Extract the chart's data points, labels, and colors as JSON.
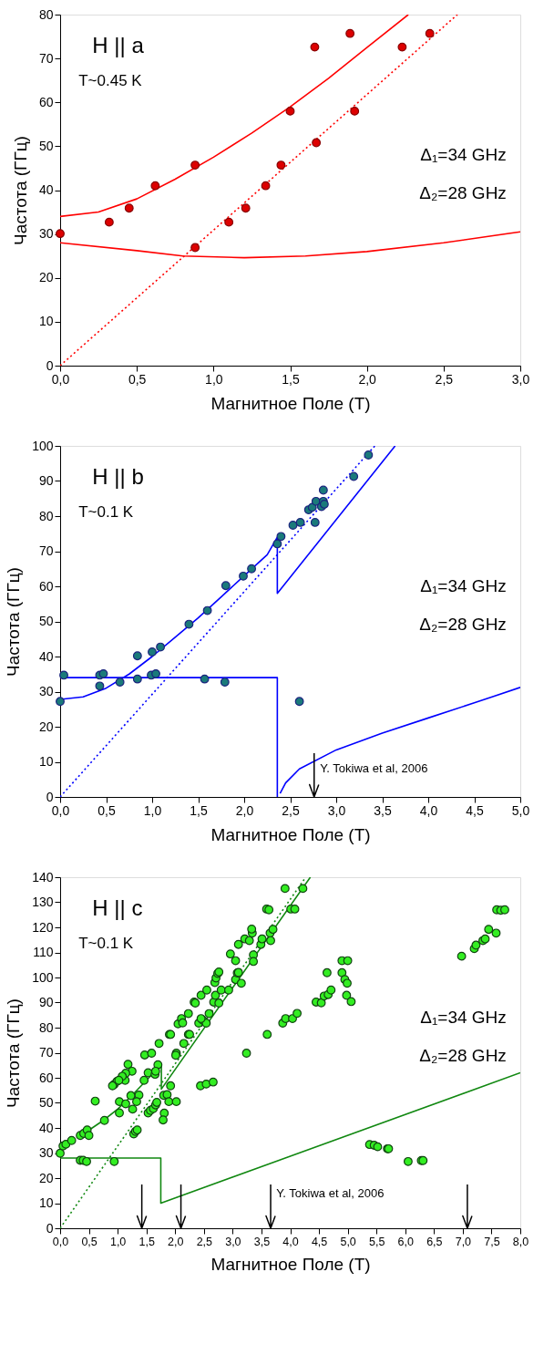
{
  "chart_data": [
    {
      "type": "scatter",
      "xlabel": "Магнитное Поле (Т)",
      "ylabel": "Частота (ГГц)",
      "grid": false,
      "xlim": [
        0,
        3
      ],
      "ylim": [
        0,
        80
      ],
      "xticks": [
        {
          "value": 0,
          "label": "0,0"
        },
        {
          "value": 0.5,
          "label": "0,5"
        },
        {
          "value": 1,
          "label": "1,0"
        },
        {
          "value": 1.5,
          "label": "1,5"
        },
        {
          "value": 2,
          "label": "2,0"
        },
        {
          "value": 2.5,
          "label": "2,5"
        },
        {
          "value": 3,
          "label": "3,0"
        }
      ],
      "yticks": [
        0,
        10,
        20,
        30,
        40,
        50,
        60,
        70,
        80
      ],
      "annotations": [
        "H || a",
        "T~0.45 K",
        "Δ₁=34 GHz",
        "Δ₂=28 GHz"
      ],
      "series": [
        {
          "type": "line",
          "color": "#ff0000",
          "x": [
            0,
            0.25,
            0.5,
            0.75,
            1.0,
            1.25,
            1.5,
            1.75,
            2.0,
            2.27
          ],
          "values": [
            34,
            35,
            38,
            42.5,
            47.5,
            53,
            59,
            65.5,
            72.5,
            80
          ]
        },
        {
          "type": "line",
          "color": "#ff0000",
          "x": [
            0,
            0.5,
            0.8,
            1.2,
            1.6,
            2.0,
            2.5,
            3.0
          ],
          "values": [
            28,
            26.2,
            25,
            24.6,
            25,
            26,
            28,
            30.5
          ]
        },
        {
          "type": "line",
          "color": "#ff0000",
          "line_style": "dotted",
          "x": [
            0,
            2.59
          ],
          "values": [
            0,
            80
          ]
        },
        {
          "marker": "circle",
          "color": "#dd0000",
          "x": [
            0.0,
            0.32,
            0.45,
            0.62,
            0.88,
            0.88,
            1.1,
            1.21,
            1.34,
            1.44,
            1.5,
            1.66,
            1.67,
            1.89,
            1.92,
            2.23,
            2.41
          ],
          "values": [
            30.1,
            32.7,
            35.9,
            41.0,
            45.7,
            26.9,
            32.7,
            35.9,
            41.0,
            45.7,
            58.0,
            72.6,
            50.8,
            75.7,
            58.0,
            72.6,
            75.7
          ]
        }
      ]
    },
    {
      "type": "scatter",
      "xlabel": "Магнитное Поле (Т)",
      "ylabel": "Частота (ГГц)",
      "grid": false,
      "xlim": [
        0,
        5
      ],
      "ylim": [
        0,
        100
      ],
      "xticks": [
        {
          "value": 0,
          "label": "0,0"
        },
        {
          "value": 0.5,
          "label": "0,5"
        },
        {
          "value": 1,
          "label": "1,0"
        },
        {
          "value": 1.5,
          "label": "1,5"
        },
        {
          "value": 2,
          "label": "2,0"
        },
        {
          "value": 2.5,
          "label": "2,5"
        },
        {
          "value": 3,
          "label": "3,0"
        },
        {
          "value": 3.5,
          "label": "3,5"
        },
        {
          "value": 4,
          "label": "4,0"
        },
        {
          "value": 4.5,
          "label": "4,5"
        },
        {
          "value": 5,
          "label": "5,0"
        }
      ],
      "yticks": [
        0,
        10,
        20,
        30,
        40,
        50,
        60,
        70,
        80,
        90,
        100
      ],
      "annotations": [
        "H || b",
        "T~0.1 K",
        "Δ₁=34 GHz",
        "Δ₂=28 GHz",
        "Y. Tokiwa et al, 2006"
      ],
      "ref_lines": [
        {
          "axis": "x",
          "value": 2.76,
          "color": "#000000"
        }
      ],
      "series": [
        {
          "type": "line",
          "color": "#0000ff",
          "x": [
            0,
            0.25,
            0.5,
            0.75,
            1.0,
            1.25,
            1.5,
            1.75,
            2.0,
            2.25,
            2.36,
            2.36,
            3.64
          ],
          "values": [
            27.8,
            28.5,
            31,
            35,
            40,
            45.5,
            51,
            57,
            63,
            69,
            74,
            58,
            100
          ]
        },
        {
          "type": "line",
          "color": "#0000ff",
          "x": [
            0,
            2.36,
            2.36
          ],
          "values": [
            34,
            34,
            0
          ]
        },
        {
          "type": "line",
          "color": "#0000ff",
          "x": [
            2.39,
            2.45,
            2.6,
            3.0,
            3.5,
            4.0,
            4.5,
            5.0
          ],
          "values": [
            1,
            4,
            8,
            13.4,
            18.2,
            22.5,
            26.8,
            31.2
          ]
        },
        {
          "type": "line",
          "color": "#0000ff",
          "line_style": "dotted",
          "x": [
            0,
            3.42
          ],
          "values": [
            0,
            100
          ]
        },
        {
          "marker": "circle",
          "color": "#1a7a7a",
          "x": [
            0.0,
            0.04,
            0.43,
            0.47,
            0.43,
            0.65,
            0.84,
            0.84,
            0.99,
            1.04,
            1.0,
            1.09,
            1.4,
            1.6,
            1.57,
            1.79,
            1.8,
            1.99,
            2.08,
            2.36,
            2.4,
            2.53,
            2.61,
            2.77,
            2.6,
            2.7,
            2.74,
            2.78,
            2.84,
            2.86,
            2.87,
            2.86,
            3.19,
            3.35
          ],
          "values": [
            27.2,
            34.7,
            34.7,
            35.1,
            31.6,
            32.7,
            40.2,
            33.6,
            34.7,
            35.1,
            41.3,
            42.7,
            49.2,
            53.1,
            33.6,
            32.7,
            60.2,
            62.9,
            65.0,
            72.1,
            74.2,
            77.4,
            78.2,
            78.2,
            27.2,
            81.8,
            82.5,
            84.2,
            82.7,
            84.2,
            83.4,
            87.4,
            91.3,
            97.4
          ]
        }
      ]
    },
    {
      "type": "scatter",
      "xlabel": "Магнитное Поле (Т)",
      "ylabel": "Частота (ГГц)",
      "grid": false,
      "xlim": [
        0,
        8
      ],
      "ylim": [
        0,
        140
      ],
      "xticks": [
        {
          "value": 0,
          "label": "0,0"
        },
        {
          "value": 0.5,
          "label": "0,5"
        },
        {
          "value": 1,
          "label": "1,0"
        },
        {
          "value": 1.5,
          "label": "1,5"
        },
        {
          "value": 2,
          "label": "2,0"
        },
        {
          "value": 2.5,
          "label": "2,5"
        },
        {
          "value": 3,
          "label": "3,0"
        },
        {
          "value": 3.5,
          "label": "3,5"
        },
        {
          "value": 4,
          "label": "4,0"
        },
        {
          "value": 4.5,
          "label": "4,5"
        },
        {
          "value": 5,
          "label": "5,0"
        },
        {
          "value": 5.5,
          "label": "5,5"
        },
        {
          "value": 6,
          "label": "6,0"
        },
        {
          "value": 6.5,
          "label": "6,5"
        },
        {
          "value": 7,
          "label": "7,0"
        },
        {
          "value": 7.5,
          "label": "7,5"
        },
        {
          "value": 8,
          "label": "8,0"
        }
      ],
      "yticks": [
        0,
        10,
        20,
        30,
        40,
        50,
        60,
        70,
        80,
        90,
        100,
        110,
        120,
        130,
        140
      ],
      "annotations": [
        "H || c",
        "T~0.1 K",
        "Δ₁=34 GHz",
        "Δ₂=28 GHz",
        "Y. Tokiwa et al, 2006"
      ],
      "ref_lines": [
        {
          "axis": "x",
          "value": 1.42,
          "color": "#000000"
        },
        {
          "axis": "x",
          "value": 2.1,
          "color": "#000000"
        },
        {
          "axis": "x",
          "value": 3.66,
          "color": "#000000"
        },
        {
          "axis": "x",
          "value": 7.08,
          "color": "#000000"
        }
      ],
      "series": [
        {
          "type": "line",
          "color": "#118811",
          "x": [
            0.3,
            0.75,
            1.0,
            1.25,
            1.5,
            1.76,
            1.76,
            4.35
          ],
          "values": [
            36,
            43,
            47.5,
            53,
            59,
            65.2,
            55.5,
            140
          ]
        },
        {
          "type": "line",
          "color": "#118811",
          "x": [
            0,
            1.75,
            1.75,
            8.0
          ],
          "values": [
            28,
            28,
            10,
            62
          ]
        },
        {
          "type": "line",
          "color": "#118811",
          "line_style": "dotted",
          "x": [
            0,
            4.27
          ],
          "values": [
            0,
            140
          ]
        },
        {
          "marker": "circle",
          "color": "#33ee22",
          "x": [
            0,
            0.05,
            0.1,
            0.2,
            0.35,
            0.41,
            0.47,
            0.5,
            0.77,
            0.61,
            1.03,
            1.03,
            1.14,
            1.23,
            1.26,
            1.37,
            1.33,
            1.28,
            1.31,
            1.34,
            0.35,
            0.4,
            0.46,
            0.94,
            1.53,
            1.57,
            1.62,
            1.66,
            1.68,
            1.8,
            1.81,
            1.79,
            1.86,
            1.89,
            2.02,
            1.92,
            0.94,
            0.99,
            1.13,
            2.44,
            2.54,
            2.66,
            5.38,
            5.46,
            5.52,
            5.69,
            5.71,
            6.05,
            6.28,
            6.31,
            1.18,
            1.25,
            1.14,
            1.08,
            1.02,
            0.91,
            1.47,
            1.59,
            1.72,
            1.7,
            1.53,
            1.65,
            1.46,
            1.66,
            2.02,
            2.01,
            2.15,
            1.9,
            1.92,
            2.23,
            2.25,
            2.05,
            2.11,
            2.13,
            2.23,
            2.41,
            2.48,
            2.54,
            2.59,
            2.45,
            2.33,
            2.35,
            2.45,
            2.55,
            2.67,
            2.76,
            2.7,
            2.8,
            2.93,
            2.69,
            2.71,
            2.74,
            2.76,
            3.05,
            3.08,
            3.1,
            3.15,
            2.96,
            3.05,
            3.36,
            3.36,
            3.1,
            3.21,
            3.29,
            3.34,
            3.33,
            3.49,
            3.51,
            3.65,
            3.7,
            3.66,
            3.59,
            3.63,
            4.01,
            4.08,
            3.91,
            4.22,
            3.24,
            3.6,
            3.87,
            3.92,
            4.04,
            4.12,
            4.45,
            4.54,
            4.59,
            4.66,
            4.71,
            4.64,
            4.9,
            5.0,
            4.9,
            4.95,
            4.99,
            4.98,
            5.06,
            6.98,
            7.2,
            7.23,
            7.35,
            7.39,
            7.45,
            7.58,
            7.59,
            7.66,
            7.73
          ],
          "values": [
            29.9,
            32.8,
            33.5,
            35,
            37,
            37.8,
            39.2,
            37,
            43,
            50.7,
            46,
            50.5,
            49.6,
            52.9,
            47.5,
            53.1,
            50.5,
            37.6,
            38.6,
            39.2,
            27.1,
            27.1,
            26.6,
            26.6,
            46,
            47,
            47.7,
            49.2,
            50.2,
            53,
            45.9,
            43.2,
            53.3,
            50.5,
            50.5,
            56.8,
            57.4,
            58.6,
            59,
            56.8,
            57.5,
            58.3,
            33.4,
            33.1,
            32.5,
            31.7,
            31.7,
            26.6,
            27,
            27,
            65.4,
            62.6,
            61.8,
            60.6,
            59,
            56.8,
            69.1,
            69.8,
            73.7,
            65.2,
            62,
            61.4,
            59,
            62.6,
            69.8,
            69,
            73.7,
            77.3,
            77.3,
            77.3,
            77.3,
            81.5,
            83.6,
            81.9,
            85.6,
            81.8,
            83,
            81.8,
            85.6,
            83.6,
            90.2,
            89.8,
            92.9,
            95,
            90.2,
            89.8,
            92.9,
            95,
            95,
            98,
            99.8,
            101.6,
            102.2,
            99.2,
            101.8,
            102,
            97.7,
            109.4,
            106.7,
            109,
            106.4,
            113.2,
            115.4,
            114.7,
            117.7,
            119.3,
            113.2,
            115.4,
            117.7,
            119.2,
            114.7,
            127.3,
            127,
            127.3,
            127.3,
            135.5,
            135.5,
            69.8,
            77.3,
            81.8,
            83.6,
            83.6,
            85.7,
            90.2,
            89.9,
            92.6,
            93.2,
            95,
            101.9,
            106.7,
            106.7,
            101.9,
            99.2,
            97.7,
            92.9,
            90.4,
            108.5,
            111.5,
            112.9,
            114.7,
            115.4,
            119.2,
            117.7,
            127,
            126.8,
            127
          ]
        }
      ]
    }
  ]
}
